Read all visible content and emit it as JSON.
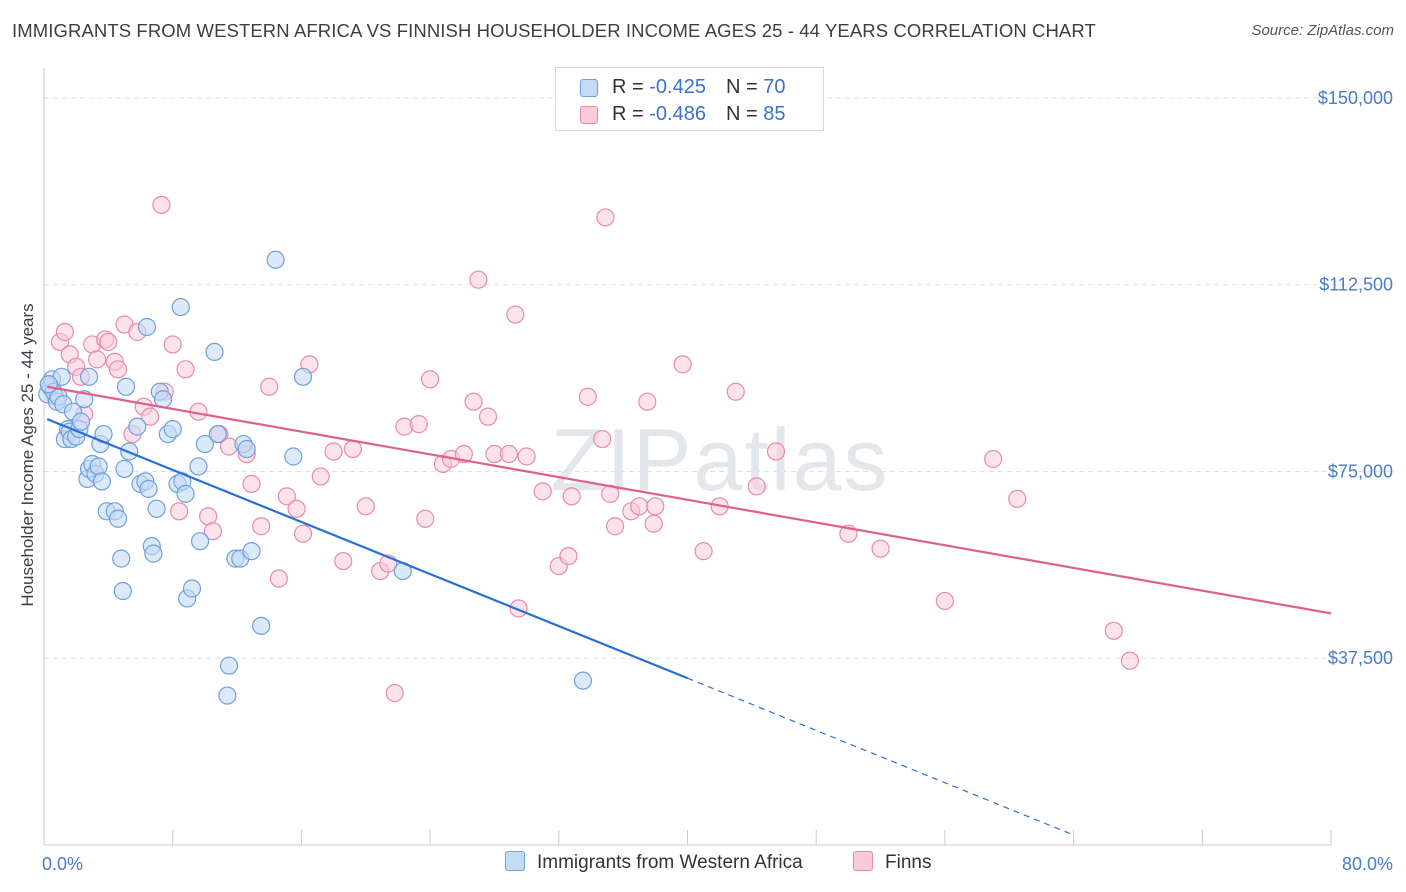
{
  "title": "IMMIGRANTS FROM WESTERN AFRICA VS FINNISH HOUSEHOLDER INCOME AGES 25 - 44 YEARS CORRELATION CHART",
  "source": "Source: ZipAtlas.com",
  "colors": {
    "blue": "#6f9fdc",
    "blue_fill": "#c5daf5",
    "blue_line": "#2a6fd6",
    "pink": "#e98aab",
    "pink_fill": "#f8cada",
    "pink_line": "#e0608d"
  },
  "legend": {
    "rows": [
      {
        "r_label": "R = ",
        "r_value": "-0.425",
        "n_label": "N = ",
        "n_value": "70"
      },
      {
        "r_label": "R = ",
        "r_value": "-0.486",
        "n_label": "N = ",
        "n_value": "85"
      }
    ]
  },
  "bottom_legend": {
    "series1": "Immigrants from Western Africa",
    "series2": "Finns"
  },
  "chart_data": {
    "type": "scatter",
    "ylabel": "Householder Income Ages 25 - 44 years",
    "xlim": [
      0,
      80
    ],
    "ylim": [
      0,
      156000
    ],
    "x_tick_labels": [
      "0.0%",
      "80.0%"
    ],
    "y_ticks": [
      37500,
      75000,
      112500,
      150000
    ],
    "y_tick_labels": [
      "$37,500",
      "$75,000",
      "$112,500",
      "$150,000"
    ],
    "watermark": "ZIPatlas",
    "series": [
      {
        "name": "Immigrants from Western Africa",
        "trend": {
          "x0": 0.2,
          "y0": 85500,
          "x1": 40,
          "y1": 33500,
          "dash_x1": 64,
          "dash_y1": 2000
        },
        "points": [
          [
            0.2,
            90500
          ],
          [
            0.4,
            92000
          ],
          [
            0.5,
            93500
          ],
          [
            0.6,
            91000
          ],
          [
            0.8,
            89000
          ],
          [
            0.9,
            90000
          ],
          [
            1.2,
            88500
          ],
          [
            1.1,
            94000
          ],
          [
            1.3,
            81500
          ],
          [
            1.5,
            83500
          ],
          [
            1.8,
            87000
          ],
          [
            1.6,
            83000
          ],
          [
            1.7,
            81500
          ],
          [
            2.0,
            82000
          ],
          [
            2.2,
            83500
          ],
          [
            2.3,
            85000
          ],
          [
            2.5,
            89500
          ],
          [
            2.7,
            73500
          ],
          [
            2.8,
            75500
          ],
          [
            3.0,
            76500
          ],
          [
            3.2,
            74500
          ],
          [
            3.4,
            76000
          ],
          [
            3.5,
            80500
          ],
          [
            3.6,
            73000
          ],
          [
            3.7,
            82500
          ],
          [
            3.9,
            67000
          ],
          [
            4.4,
            67000
          ],
          [
            4.6,
            65500
          ],
          [
            4.8,
            57500
          ],
          [
            4.9,
            51000
          ],
          [
            5.0,
            75500
          ],
          [
            5.3,
            79000
          ],
          [
            5.8,
            84000
          ],
          [
            6.0,
            72500
          ],
          [
            6.3,
            73000
          ],
          [
            6.5,
            71500
          ],
          [
            6.7,
            60000
          ],
          [
            6.8,
            58500
          ],
          [
            7.0,
            67500
          ],
          [
            7.2,
            91000
          ],
          [
            7.4,
            89500
          ],
          [
            7.7,
            82500
          ],
          [
            8.0,
            83500
          ],
          [
            8.3,
            72500
          ],
          [
            8.5,
            108000
          ],
          [
            8.6,
            73000
          ],
          [
            8.8,
            70500
          ],
          [
            8.9,
            49500
          ],
          [
            9.2,
            51500
          ],
          [
            9.6,
            76000
          ],
          [
            9.7,
            61000
          ],
          [
            10.0,
            80500
          ],
          [
            10.6,
            99000
          ],
          [
            10.8,
            82500
          ],
          [
            11.5,
            36000
          ],
          [
            11.4,
            30000
          ],
          [
            11.9,
            57500
          ],
          [
            12.2,
            57500
          ],
          [
            12.4,
            80500
          ],
          [
            12.6,
            79500
          ],
          [
            12.9,
            59000
          ],
          [
            13.5,
            44000
          ],
          [
            14.4,
            117500
          ],
          [
            15.5,
            78000
          ],
          [
            16.1,
            94000
          ],
          [
            6.4,
            104000
          ],
          [
            5.1,
            92000
          ],
          [
            2.8,
            94000
          ],
          [
            0.3,
            92500
          ],
          [
            33.5,
            33000
          ],
          [
            22.3,
            55000
          ]
        ]
      },
      {
        "name": "Finns",
        "trend": {
          "x0": 0.2,
          "y0": 92000,
          "x1": 80,
          "y1": 46500
        },
        "points": [
          [
            0.3,
            92500
          ],
          [
            0.7,
            90000
          ],
          [
            1.0,
            101000
          ],
          [
            1.3,
            103000
          ],
          [
            1.6,
            98500
          ],
          [
            2.0,
            96000
          ],
          [
            2.3,
            94000
          ],
          [
            2.5,
            86500
          ],
          [
            3.0,
            100500
          ],
          [
            3.3,
            97500
          ],
          [
            3.8,
            101500
          ],
          [
            4.0,
            101000
          ],
          [
            4.4,
            97000
          ],
          [
            4.6,
            95500
          ],
          [
            5.0,
            104500
          ],
          [
            5.5,
            82500
          ],
          [
            5.8,
            103000
          ],
          [
            6.2,
            88000
          ],
          [
            6.6,
            86000
          ],
          [
            7.3,
            128500
          ],
          [
            7.5,
            91000
          ],
          [
            8.0,
            100500
          ],
          [
            8.4,
            67000
          ],
          [
            8.8,
            95500
          ],
          [
            9.6,
            87000
          ],
          [
            10.2,
            66000
          ],
          [
            10.5,
            63000
          ],
          [
            10.9,
            82500
          ],
          [
            11.5,
            80000
          ],
          [
            12.6,
            78500
          ],
          [
            12.9,
            72500
          ],
          [
            13.5,
            64000
          ],
          [
            14.0,
            92000
          ],
          [
            14.6,
            53500
          ],
          [
            15.1,
            70000
          ],
          [
            15.7,
            67500
          ],
          [
            16.1,
            62500
          ],
          [
            16.5,
            96500
          ],
          [
            17.2,
            74000
          ],
          [
            18.0,
            79000
          ],
          [
            18.6,
            57000
          ],
          [
            19.2,
            79500
          ],
          [
            20.0,
            68000
          ],
          [
            20.9,
            55000
          ],
          [
            21.4,
            56500
          ],
          [
            21.8,
            30500
          ],
          [
            22.4,
            84000
          ],
          [
            23.3,
            84500
          ],
          [
            23.7,
            65500
          ],
          [
            24.0,
            93500
          ],
          [
            24.8,
            76500
          ],
          [
            25.3,
            77500
          ],
          [
            26.1,
            78500
          ],
          [
            26.7,
            89000
          ],
          [
            27.0,
            113500
          ],
          [
            27.6,
            86000
          ],
          [
            28.0,
            78500
          ],
          [
            28.9,
            78500
          ],
          [
            29.3,
            106500
          ],
          [
            29.5,
            47500
          ],
          [
            30.0,
            78000
          ],
          [
            31.0,
            71000
          ],
          [
            32.0,
            56000
          ],
          [
            32.6,
            58000
          ],
          [
            32.8,
            70000
          ],
          [
            33.8,
            90000
          ],
          [
            34.7,
            81500
          ],
          [
            34.9,
            126000
          ],
          [
            35.2,
            70500
          ],
          [
            35.5,
            64000
          ],
          [
            36.5,
            67000
          ],
          [
            37.0,
            68000
          ],
          [
            37.5,
            89000
          ],
          [
            37.9,
            64500
          ],
          [
            38.0,
            68000
          ],
          [
            39.7,
            96500
          ],
          [
            41.0,
            59000
          ],
          [
            42.0,
            68000
          ],
          [
            43.0,
            91000
          ],
          [
            44.3,
            72000
          ],
          [
            45.5,
            79000
          ],
          [
            50.0,
            62500
          ],
          [
            52.0,
            59500
          ],
          [
            56.0,
            49000
          ],
          [
            59.0,
            77500
          ],
          [
            60.5,
            69500
          ],
          [
            66.5,
            43000
          ],
          [
            67.5,
            37000
          ]
        ]
      }
    ]
  }
}
